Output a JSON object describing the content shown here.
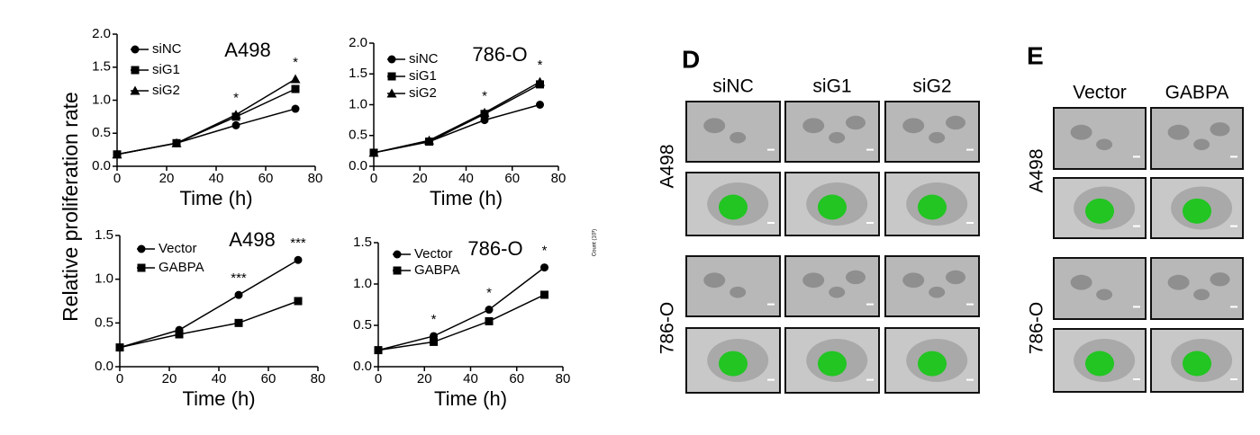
{
  "y_label": "Relative proliferation rate",
  "axis_note": "Count (10³)",
  "chart_data": [
    {
      "type": "line",
      "title": "A498",
      "x_label": "Time (h)",
      "x": [
        0,
        24,
        48,
        72
      ],
      "xlim": [
        0,
        80
      ],
      "xticks": [
        0,
        20,
        40,
        60,
        80
      ],
      "ylim": [
        0,
        2
      ],
      "yticks": [
        {
          "value": 0,
          "label": "0.0"
        },
        {
          "value": 0.5,
          "label": "0.5"
        },
        {
          "value": 1,
          "label": "1.0"
        },
        {
          "value": 1.5,
          "label": "1.5"
        },
        {
          "value": 2,
          "label": "2.0"
        }
      ],
      "series": [
        {
          "name": "siNC",
          "color": "#000000",
          "marker": "circle",
          "values": [
            0.18,
            0.35,
            0.62,
            0.87
          ]
        },
        {
          "name": "siG1",
          "color": "#000000",
          "marker": "square",
          "values": [
            0.18,
            0.35,
            0.75,
            1.17
          ]
        },
        {
          "name": "siG2",
          "color": "#000000",
          "marker": "triangle",
          "values": [
            0.18,
            0.35,
            0.78,
            1.32
          ]
        }
      ],
      "annotations": [
        {
          "text": "*",
          "x": 48
        },
        {
          "text": "*",
          "x": 72
        }
      ]
    },
    {
      "type": "line",
      "title": "786-O",
      "x_label": "Time (h)",
      "x": [
        0,
        24,
        48,
        72
      ],
      "xlim": [
        0,
        80
      ],
      "xticks": [
        0,
        20,
        40,
        60,
        80
      ],
      "ylim": [
        0,
        2
      ],
      "yticks": [
        {
          "value": 0,
          "label": "0.0"
        },
        {
          "value": 0.5,
          "label": "0.5"
        },
        {
          "value": 1,
          "label": "1.0"
        },
        {
          "value": 1.5,
          "label": "1.5"
        },
        {
          "value": 2,
          "label": "2.0"
        }
      ],
      "series": [
        {
          "name": "siNC",
          "color": "#000000",
          "marker": "circle",
          "values": [
            0.22,
            0.4,
            0.75,
            1.0
          ]
        },
        {
          "name": "siG1",
          "color": "#000000",
          "marker": "square",
          "values": [
            0.22,
            0.4,
            0.85,
            1.33
          ]
        },
        {
          "name": "siG2",
          "color": "#000000",
          "marker": "triangle",
          "values": [
            0.22,
            0.42,
            0.87,
            1.37
          ]
        }
      ],
      "annotations": [
        {
          "text": "*",
          "x": 48
        },
        {
          "text": "*",
          "x": 72
        }
      ]
    },
    {
      "type": "line",
      "title": "A498",
      "x_label": "Time (h)",
      "x": [
        0,
        24,
        48,
        72
      ],
      "xlim": [
        0,
        80
      ],
      "xticks": [
        0,
        20,
        40,
        60,
        80
      ],
      "ylim": [
        0,
        1.5
      ],
      "yticks": [
        {
          "value": 0,
          "label": "0.0"
        },
        {
          "value": 0.5,
          "label": "0.5"
        },
        {
          "value": 1,
          "label": "1.0"
        },
        {
          "value": 1.5,
          "label": "1.5"
        }
      ],
      "series": [
        {
          "name": "Vector",
          "color": "#000000",
          "marker": "circle",
          "values": [
            0.22,
            0.42,
            0.82,
            1.22
          ]
        },
        {
          "name": "GABPA",
          "color": "#000000",
          "marker": "square",
          "values": [
            0.22,
            0.37,
            0.5,
            0.75
          ]
        }
      ],
      "annotations": [
        {
          "text": "***",
          "x": 48
        },
        {
          "text": "***",
          "x": 72
        }
      ]
    },
    {
      "type": "line",
      "title": "786-O",
      "x_label": "Time (h)",
      "x": [
        0,
        24,
        48,
        72
      ],
      "xlim": [
        0,
        80
      ],
      "xticks": [
        0,
        20,
        40,
        60,
        80
      ],
      "ylim": [
        0,
        1.5
      ],
      "yticks": [
        {
          "value": 0,
          "label": "0.0"
        },
        {
          "value": 0.5,
          "label": "0.5"
        },
        {
          "value": 1,
          "label": "1.0"
        },
        {
          "value": 1.5,
          "label": "1.5"
        }
      ],
      "series": [
        {
          "name": "Vector",
          "color": "#000000",
          "marker": "circle",
          "values": [
            0.2,
            0.37,
            0.69,
            1.2
          ]
        },
        {
          "name": "GABPA",
          "color": "#000000",
          "marker": "square",
          "values": [
            0.2,
            0.3,
            0.55,
            0.87
          ]
        }
      ],
      "annotations": [
        {
          "text": "*",
          "x": 24
        },
        {
          "text": "*",
          "x": 48
        },
        {
          "text": "*",
          "x": 72
        }
      ]
    }
  ],
  "panels": [
    {
      "label": "D",
      "columns": [
        "siNC",
        "siG1",
        "siG2"
      ],
      "rows": [
        "A498",
        "786-O"
      ]
    },
    {
      "label": "E",
      "columns": [
        "Vector",
        "GABPA"
      ],
      "rows": [
        "A498",
        "786-O"
      ]
    }
  ]
}
